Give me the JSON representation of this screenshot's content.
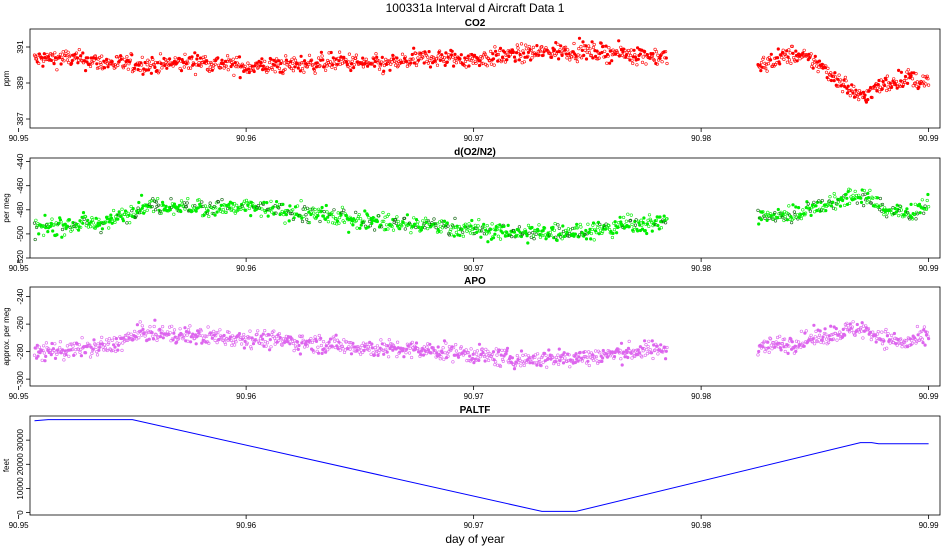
{
  "figure": {
    "title": "100331a   Interval d Aircraft Data 1",
    "xlabel": "day of year"
  },
  "chart_data": [
    {
      "type": "scatter",
      "title": "CO2",
      "ylabel": "ppm",
      "xlim": [
        90.9505,
        90.9905
      ],
      "ylim": [
        386.5,
        392.0
      ],
      "xticks": [
        "90.95",
        "90.96",
        "90.97",
        "90.98",
        "90.99"
      ],
      "yticks": [
        "387",
        "389",
        "391"
      ],
      "color": "#ff0000",
      "series": [
        {
          "x": [
            90.9507,
            90.952,
            90.954,
            90.956,
            90.958,
            90.96,
            90.962,
            90.964,
            90.966,
            90.968,
            90.97,
            90.972,
            90.974,
            90.976,
            90.978,
            90.9785
          ],
          "y": [
            390.3,
            390.4,
            390.1,
            390.0,
            390.2,
            389.9,
            390.0,
            390.2,
            390.0,
            390.4,
            390.3,
            390.6,
            390.8,
            390.7,
            390.5,
            390.4
          ]
        },
        {
          "x": [
            90.9825,
            90.983,
            90.984,
            90.985,
            90.986,
            90.987,
            90.988,
            90.989,
            90.99
          ],
          "y": [
            389.8,
            390.2,
            390.6,
            390.2,
            389.2,
            388.2,
            388.9,
            389.3,
            389.0
          ]
        }
      ]
    },
    {
      "type": "scatter",
      "title": "d(O2/N2)",
      "ylabel": "per meg",
      "xlim": [
        90.9505,
        90.9905
      ],
      "ylim": [
        -520,
        -437
      ],
      "xticks": [
        "90.95",
        "90.96",
        "90.97",
        "90.98",
        "90.99"
      ],
      "yticks": [
        "-520",
        "-500",
        "-480",
        "-460",
        "-440"
      ],
      "color": "#00ee00",
      "series": [
        {
          "x": [
            90.9507,
            90.952,
            90.954,
            90.9555,
            90.957,
            90.96,
            90.963,
            90.966,
            90.969,
            90.972,
            90.975,
            90.977,
            90.9785
          ],
          "y": [
            -495,
            -493,
            -490,
            -476,
            -478,
            -478,
            -484,
            -490,
            -494,
            -500,
            -498,
            -492,
            -490
          ]
        },
        {
          "x": [
            90.9825,
            90.984,
            90.985,
            90.986,
            90.987,
            90.988,
            90.989,
            90.99
          ],
          "y": [
            -486,
            -484,
            -478,
            -472,
            -468,
            -478,
            -484,
            -475
          ]
        }
      ]
    },
    {
      "type": "scatter",
      "title": "APO",
      "ylabel": "approx. per meg",
      "xlim": [
        90.9505,
        90.9905
      ],
      "ylim": [
        -305,
        -233
      ],
      "xticks": [
        "90.95",
        "90.96",
        "90.97",
        "90.98",
        "90.99"
      ],
      "yticks": [
        "-300",
        "-280",
        "-260",
        "-240"
      ],
      "color": "#dd66ee",
      "series": [
        {
          "x": [
            90.9507,
            90.952,
            90.954,
            90.9555,
            90.957,
            90.96,
            90.963,
            90.966,
            90.969,
            90.972,
            90.975,
            90.977,
            90.9785
          ],
          "y": [
            -280,
            -279,
            -276,
            -266,
            -268,
            -270,
            -274,
            -278,
            -280,
            -286,
            -284,
            -280,
            -278
          ]
        },
        {
          "x": [
            90.9825,
            90.984,
            90.985,
            90.986,
            90.987,
            90.988,
            90.989,
            90.99
          ],
          "y": [
            -276,
            -274,
            -270,
            -266,
            -263,
            -270,
            -274,
            -269
          ]
        }
      ]
    },
    {
      "type": "line",
      "title": "PALTF",
      "ylabel": "feet",
      "xlim": [
        90.9505,
        90.9905
      ],
      "ylim": [
        -1000,
        40000
      ],
      "xticks": [
        "90.95",
        "90.96",
        "90.97",
        "90.98",
        "90.99"
      ],
      "yticks": [
        "0",
        "10000",
        "20000",
        "30000"
      ],
      "color": "#0000ff",
      "series": [
        {
          "x": [
            90.9507,
            90.9513,
            90.955,
            90.973,
            90.9745,
            90.987,
            90.9875,
            90.9878,
            90.99
          ],
          "y": [
            38000,
            38500,
            38500,
            500,
            500,
            29000,
            29000,
            28500,
            28500
          ]
        }
      ]
    }
  ]
}
